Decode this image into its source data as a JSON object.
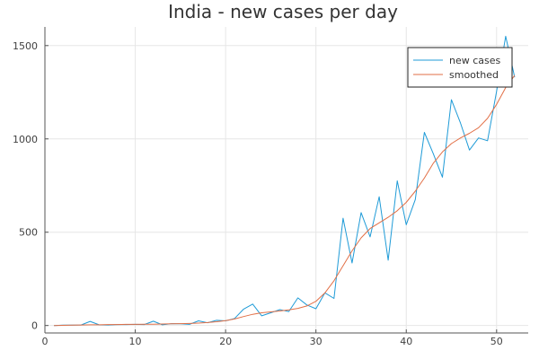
{
  "chart_data": {
    "type": "line",
    "title": "India - new cases per day",
    "xlabel": "",
    "ylabel": "",
    "xlim": [
      0,
      53.5
    ],
    "ylim": [
      -40,
      1600
    ],
    "xticks": [
      0,
      10,
      20,
      30,
      40,
      50
    ],
    "yticks": [
      0,
      500,
      1000,
      1500
    ],
    "grid": true,
    "legend_position": "top-right",
    "x": [
      1,
      2,
      3,
      4,
      5,
      6,
      7,
      8,
      9,
      10,
      11,
      12,
      13,
      14,
      15,
      16,
      17,
      18,
      19,
      20,
      21,
      22,
      23,
      24,
      25,
      26,
      27,
      28,
      29,
      30,
      31,
      32,
      33,
      34,
      35,
      36,
      37,
      38,
      39,
      40,
      41,
      42,
      43,
      44,
      45,
      46,
      47,
      48,
      49,
      50,
      51,
      52
    ],
    "series": [
      {
        "name": "new cases",
        "color": "#1f9bd7",
        "values": [
          0,
          2,
          2,
          3,
          22,
          4,
          3,
          5,
          5,
          6,
          5,
          23,
          4,
          10,
          9,
          6,
          25,
          15,
          28,
          25,
          38,
          88,
          115,
          52,
          68,
          85,
          75,
          148,
          110,
          90,
          175,
          145,
          575,
          335,
          605,
          475,
          690,
          350,
          775,
          540,
          675,
          1035,
          920,
          795,
          1210,
          1085,
          940,
          1005,
          990,
          1255,
          1550,
          1330
        ]
      },
      {
        "name": "smoothed",
        "color": "#e26f46",
        "values": [
          0,
          1,
          2,
          3,
          4,
          4,
          5,
          5,
          6,
          6,
          7,
          7,
          8,
          9,
          10,
          11,
          13,
          16,
          20,
          26,
          35,
          48,
          60,
          68,
          73,
          78,
          84,
          92,
          105,
          130,
          175,
          240,
          320,
          400,
          470,
          520,
          550,
          580,
          615,
          660,
          720,
          790,
          870,
          930,
          975,
          1005,
          1030,
          1060,
          1110,
          1185,
          1275,
          1340
        ]
      }
    ]
  }
}
